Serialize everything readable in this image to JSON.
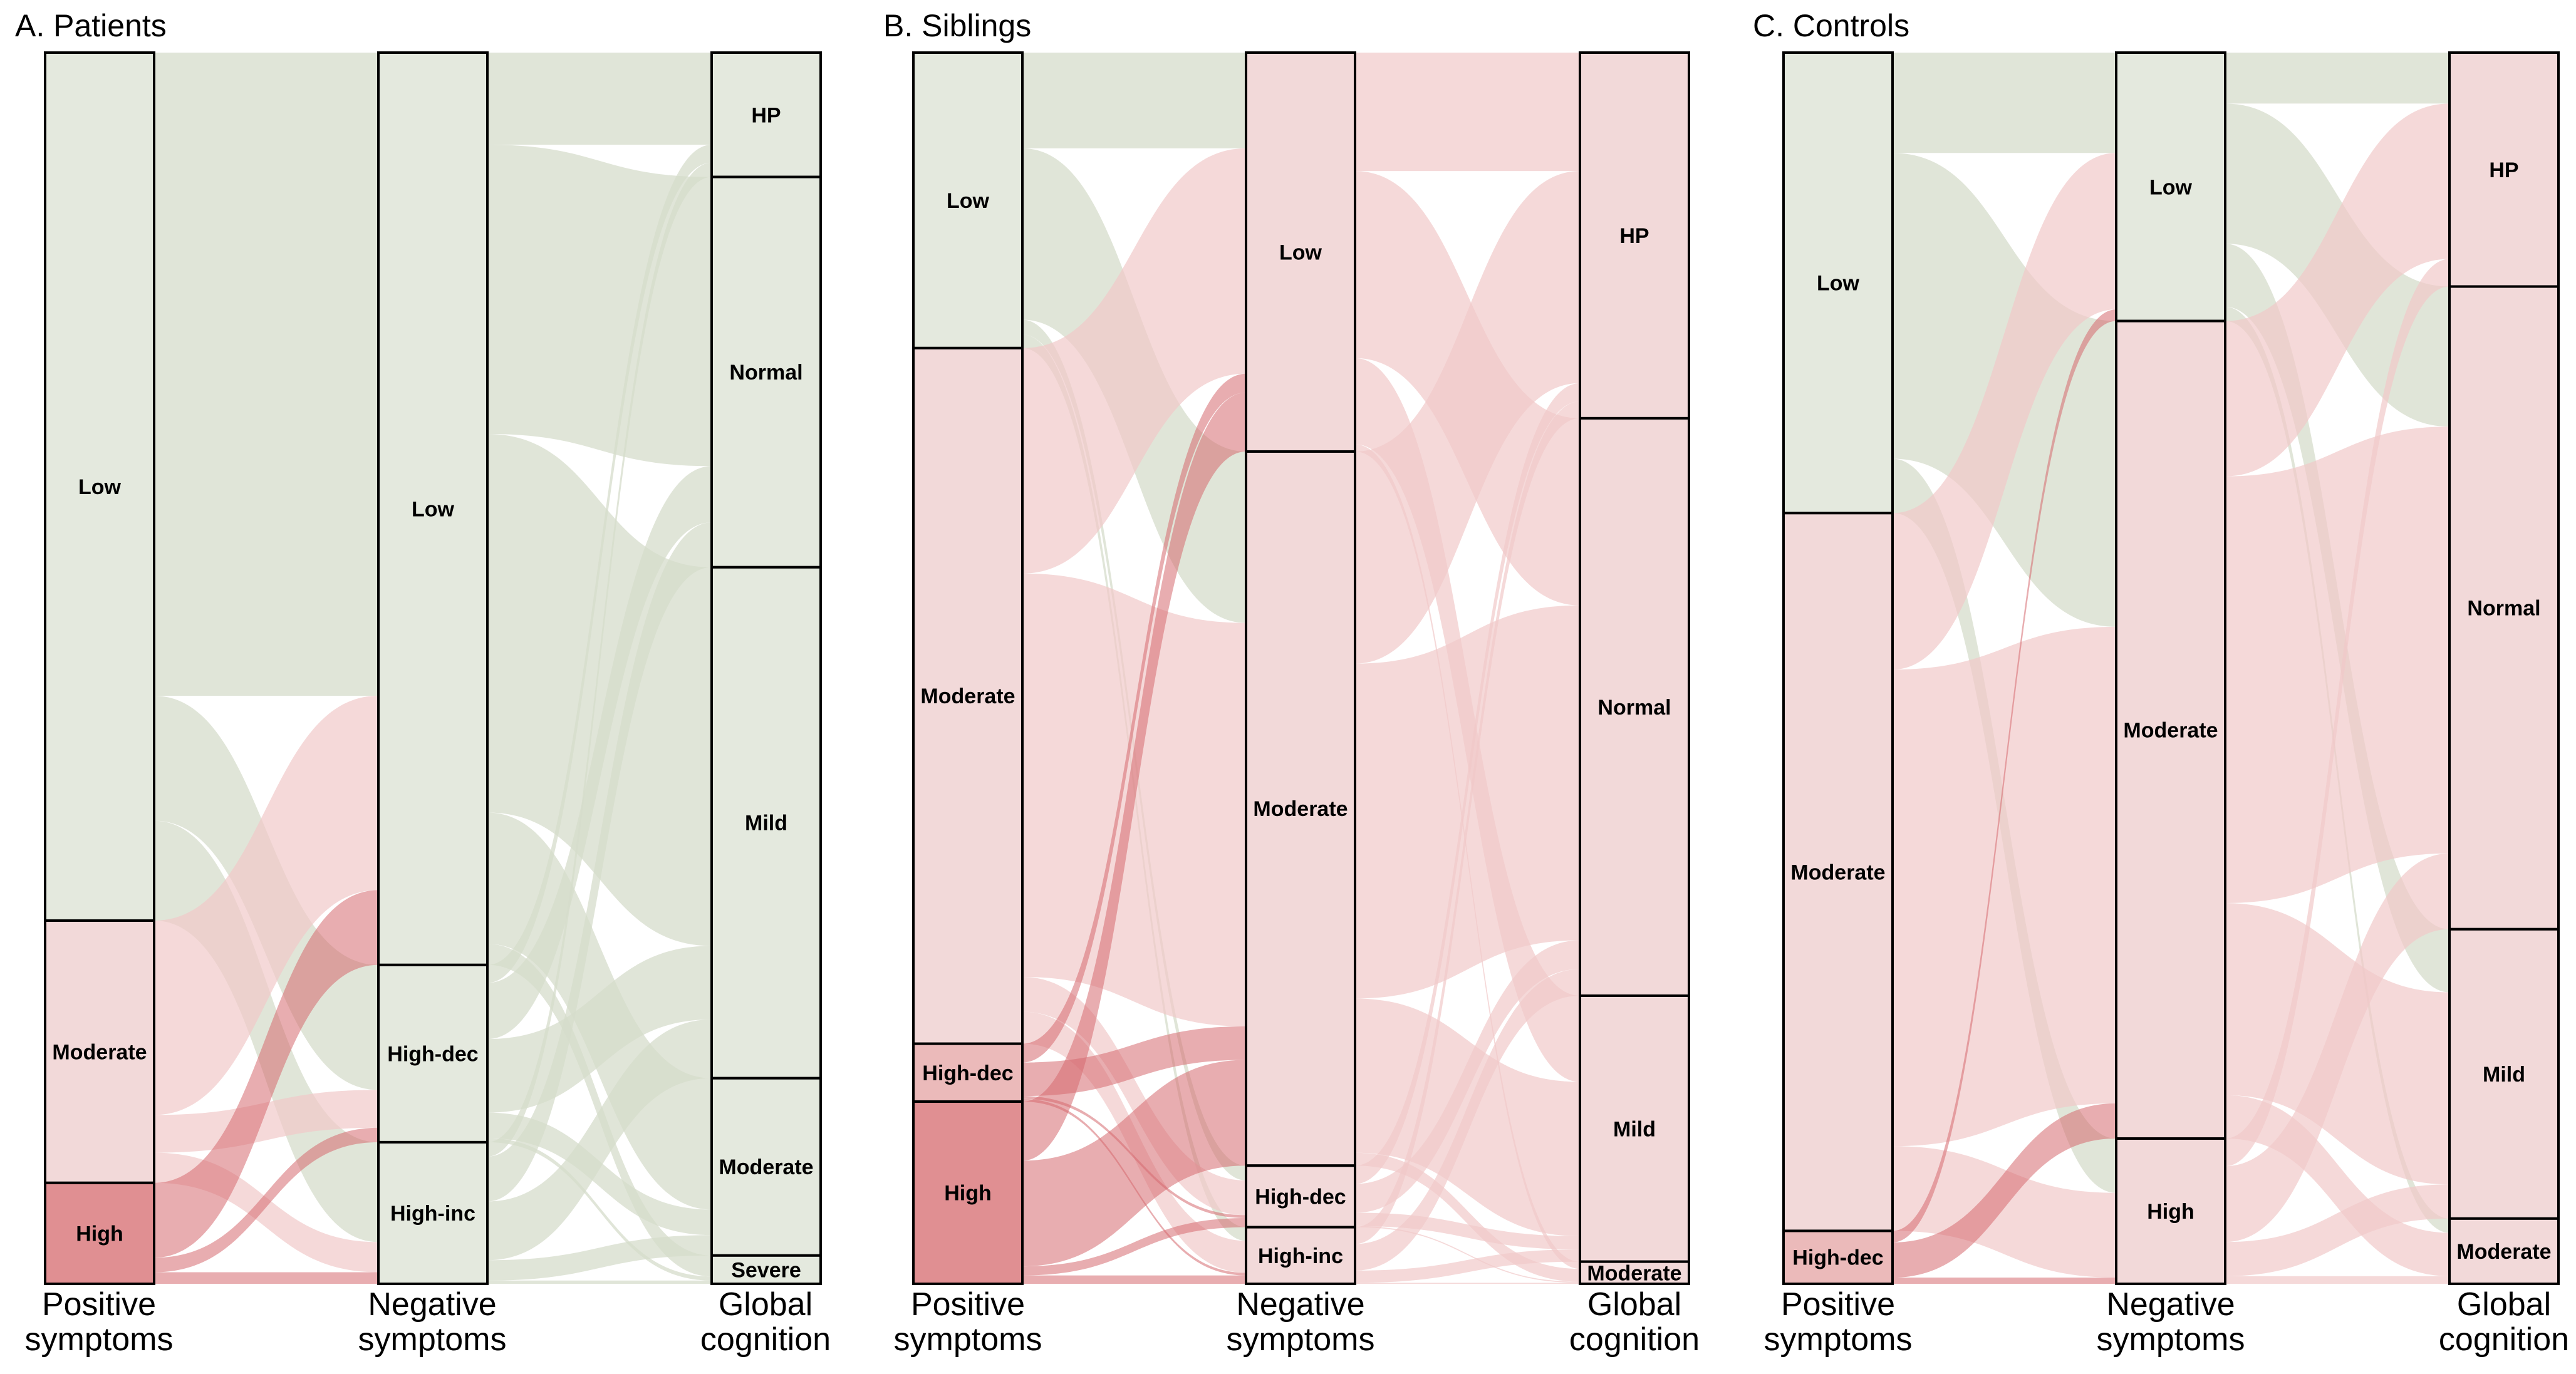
{
  "colors": {
    "low": "#dfe5d8",
    "moderate": "#f0d2d2",
    "high_dec": "#e8aeae",
    "high": "#da7b7f",
    "high_inc": "#eec4c4",
    "flow_low": "#d5dccb",
    "flow_mid": "#f1c9c9",
    "flow_high": "#d66a70",
    "border": "#000000"
  },
  "chart_data": [
    {
      "type": "alluvial",
      "title": "A. Patients",
      "axes": [
        {
          "name": "Positive symptoms",
          "nodes": [
            {
              "label": "Low",
              "value": 70.5,
              "tone": "low"
            },
            {
              "label": "Moderate",
              "value": 21.3,
              "tone": "moderate"
            },
            {
              "label": "High",
              "value": 8.2,
              "tone": "high"
            }
          ]
        },
        {
          "name": "Negative symptoms",
          "nodes": [
            {
              "label": "Low",
              "value": 74.1,
              "tone": "low"
            },
            {
              "label": "High-dec",
              "value": 14.4,
              "tone": "low"
            },
            {
              "label": "High-inc",
              "value": 11.5,
              "tone": "low"
            }
          ]
        },
        {
          "name": "Global cognition",
          "nodes": [
            {
              "label": "HP",
              "value": 10.1,
              "tone": "low"
            },
            {
              "label": "Normal",
              "value": 31.7,
              "tone": "low"
            },
            {
              "label": "Mild",
              "value": 41.5,
              "tone": "low"
            },
            {
              "label": "Moderate",
              "value": 14.4,
              "tone": "low"
            },
            {
              "label": "Severe",
              "value": 2.3,
              "tone": "low"
            }
          ]
        }
      ]
    },
    {
      "type": "alluvial",
      "title": "B. Siblings",
      "axes": [
        {
          "name": "Positive symptoms",
          "nodes": [
            {
              "label": "Low",
              "value": 24,
              "tone": "low"
            },
            {
              "label": "Moderate",
              "value": 56.5,
              "tone": "moderate"
            },
            {
              "label": "High-dec",
              "value": 4.7,
              "tone": "high_dec"
            },
            {
              "label": "High",
              "value": 14.8,
              "tone": "high"
            }
          ]
        },
        {
          "name": "Negative symptoms",
          "nodes": [
            {
              "label": "Low",
              "value": 32.4,
              "tone": "moderate"
            },
            {
              "label": "Moderate",
              "value": 58,
              "tone": "moderate"
            },
            {
              "label": "High-dec",
              "value": 5,
              "tone": "moderate"
            },
            {
              "label": "High-inc",
              "value": 4.6,
              "tone": "moderate"
            }
          ]
        },
        {
          "name": "Global cognition",
          "nodes": [
            {
              "label": "HP",
              "value": 29.7,
              "tone": "moderate"
            },
            {
              "label": "Normal",
              "value": 46.9,
              "tone": "moderate"
            },
            {
              "label": "Mild",
              "value": 21.6,
              "tone": "moderate"
            },
            {
              "label": "Moderate",
              "value": 1.8,
              "tone": "moderate"
            }
          ]
        }
      ]
    },
    {
      "type": "alluvial",
      "title": "C. Controls",
      "axes": [
        {
          "name": "Positive symptoms",
          "nodes": [
            {
              "label": "Low",
              "value": 37.4,
              "tone": "low"
            },
            {
              "label": "Moderate",
              "value": 58.3,
              "tone": "moderate"
            },
            {
              "label": "High-dec",
              "value": 4.3,
              "tone": "high_dec"
            }
          ]
        },
        {
          "name": "Negative symptoms",
          "nodes": [
            {
              "label": "Low",
              "value": 21.8,
              "tone": "low"
            },
            {
              "label": "Moderate",
              "value": 66.4,
              "tone": "moderate"
            },
            {
              "label": "High",
              "value": 11.8,
              "tone": "moderate"
            }
          ]
        },
        {
          "name": "Global cognition",
          "nodes": [
            {
              "label": "HP",
              "value": 19,
              "tone": "moderate"
            },
            {
              "label": "Normal",
              "value": 52.2,
              "tone": "moderate"
            },
            {
              "label": "Mild",
              "value": 23.5,
              "tone": "moderate"
            },
            {
              "label": "Moderate",
              "value": 5.3,
              "tone": "moderate"
            }
          ]
        }
      ]
    }
  ]
}
